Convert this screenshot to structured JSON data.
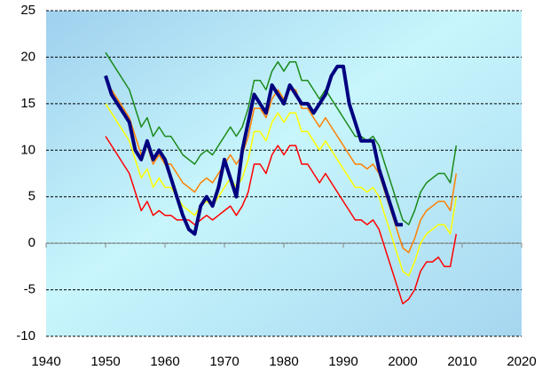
{
  "chart_data": {
    "type": "line",
    "x": [
      1950,
      1951,
      1952,
      1953,
      1954,
      1955,
      1956,
      1957,
      1958,
      1959,
      1960,
      1961,
      1962,
      1963,
      1964,
      1965,
      1966,
      1967,
      1968,
      1969,
      1970,
      1971,
      1972,
      1973,
      1974,
      1975,
      1976,
      1977,
      1978,
      1979,
      1980,
      1981,
      1982,
      1983,
      1984,
      1985,
      1986,
      1987,
      1988,
      1989,
      1990,
      1991,
      1992,
      1993,
      1994,
      1995,
      1996,
      1997,
      1998,
      1999,
      2000,
      2001,
      2002,
      2003,
      2004,
      2005,
      2006,
      2007,
      2008,
      2009
    ],
    "series": [
      {
        "color": "#1a8a1a",
        "values": [
          20.5,
          19.5,
          18.5,
          17.5,
          16.5,
          14.5,
          12.5,
          13.5,
          11.5,
          12.5,
          11.5,
          11.5,
          10.5,
          9.5,
          9,
          8.5,
          9.5,
          10,
          9.5,
          10.5,
          11.5,
          12.5,
          11.5,
          12.5,
          14.5,
          17.5,
          17.5,
          16.5,
          18.5,
          19.5,
          18.5,
          19.5,
          19.5,
          17.5,
          17.5,
          16.5,
          15.5,
          16.5,
          15.5,
          14.5,
          13.5,
          12.5,
          11.5,
          11.5,
          11,
          11.5,
          10.5,
          8.5,
          6.5,
          4.5,
          2.5,
          2,
          3.5,
          5.5,
          6.5,
          7,
          7.5,
          7.5,
          6.5,
          10.5
        ]
      },
      {
        "color": "#ff8000",
        "values": [
          17.5,
          16.5,
          15.5,
          14.5,
          13.5,
          11.5,
          9.5,
          10.5,
          8.5,
          9.5,
          8.5,
          8.5,
          7.5,
          6.5,
          6,
          5.5,
          6.5,
          7,
          6.5,
          7.5,
          8.5,
          9.5,
          8.5,
          9.5,
          11.5,
          14.5,
          14.5,
          13.5,
          15.5,
          16.5,
          15.5,
          16.5,
          16.5,
          14.5,
          14.5,
          13.5,
          12.5,
          13.5,
          12.5,
          11.5,
          10.5,
          9.5,
          8.5,
          8.5,
          8,
          8.5,
          7.5,
          5.5,
          3.5,
          1.5,
          -0.5,
          -1,
          0.5,
          2.5,
          3.5,
          4,
          4.5,
          4.5,
          3.5,
          7.5
        ]
      },
      {
        "color": "#ffff00",
        "values": [
          15,
          14,
          13,
          12,
          11,
          9,
          7,
          8,
          6,
          7,
          6,
          6,
          5,
          4,
          3.5,
          3,
          4,
          4.5,
          4,
          5,
          6,
          7,
          6,
          7,
          9,
          12,
          12,
          11,
          13,
          14,
          13,
          14,
          14,
          12,
          12,
          11,
          10,
          11,
          10,
          9,
          8,
          7,
          6,
          6,
          5.5,
          6,
          5,
          3,
          1,
          -1,
          -3,
          -3.5,
          -2,
          0,
          1,
          1.5,
          2,
          2,
          1,
          5
        ]
      },
      {
        "color": "#ff0000",
        "values": [
          11.5,
          10.5,
          9.5,
          8.5,
          7.5,
          5.5,
          3.5,
          4.5,
          3,
          3.5,
          3,
          3,
          2.5,
          2.5,
          2.5,
          2,
          2.5,
          3,
          2.5,
          3,
          3.5,
          4,
          3,
          4,
          5.5,
          8.5,
          8.5,
          7.5,
          9.5,
          10.5,
          9.5,
          10.5,
          10.5,
          8.5,
          8.5,
          7.5,
          6.5,
          7.5,
          6.5,
          5.5,
          4.5,
          3.5,
          2.5,
          2.5,
          2,
          2.5,
          1.5,
          -0.5,
          -2.5,
          -4.5,
          -6.5,
          -6,
          -5,
          -3,
          -2,
          -2,
          -1.5,
          -2.5,
          -2.5,
          1
        ]
      },
      {
        "color": "#000080",
        "width": 4,
        "values": [
          18,
          16,
          15,
          14,
          13,
          10,
          9,
          11,
          9,
          10,
          9,
          7,
          5,
          3,
          1.5,
          1,
          4,
          5,
          4,
          6,
          9,
          7,
          5,
          10,
          13,
          16,
          15,
          14,
          17,
          16,
          15,
          17,
          16,
          15,
          15,
          14,
          15,
          16,
          18,
          19,
          19,
          15,
          13,
          11,
          11,
          11,
          8,
          6,
          4,
          2,
          2,
          null,
          null,
          null,
          null,
          null,
          null,
          null,
          null,
          null
        ]
      }
    ],
    "xlim": [
      1940,
      2020
    ],
    "xticks": [
      1940,
      1950,
      1960,
      1970,
      1980,
      1990,
      2000,
      2010,
      2020
    ],
    "ylim": [
      -10,
      25
    ],
    "yticks": [
      -10,
      -5,
      0,
      5,
      10,
      15,
      20,
      25
    ],
    "grid": true
  }
}
